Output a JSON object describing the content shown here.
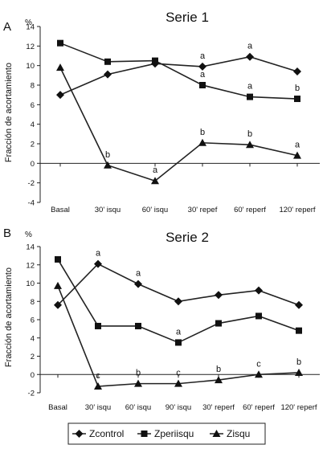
{
  "chart_data": [
    {
      "type": "line",
      "panel_letter": "A",
      "title": "Serie 1",
      "unit_label": "%",
      "ylabel": "Fracción de acortamiento",
      "xlabel": "",
      "ylim": [
        -4,
        14
      ],
      "yticks": [
        "-4",
        "-2",
        "0",
        "2",
        "4",
        "6",
        "8",
        "10",
        "12",
        "14"
      ],
      "categories": [
        "Basal",
        "30' isqu",
        "60' isqu",
        "30' repef",
        "60' reperf",
        "120' reperf"
      ],
      "series": [
        {
          "name": "Zcontrol",
          "marker": "diamond",
          "values": [
            7.0,
            9.1,
            10.2,
            9.9,
            10.9,
            9.4
          ]
        },
        {
          "name": "Zperiisqu",
          "marker": "square",
          "values": [
            12.3,
            10.4,
            10.5,
            8.0,
            6.8,
            6.6
          ]
        },
        {
          "name": "Zisqu",
          "marker": "triangle",
          "values": [
            9.8,
            -0.2,
            -1.8,
            2.1,
            1.9,
            0.8
          ]
        }
      ],
      "annotations": [
        {
          "text": "b",
          "series": 2,
          "index": 1
        },
        {
          "text": "a",
          "series": 2,
          "index": 2
        },
        {
          "text": "a",
          "series": 0,
          "index": 3
        },
        {
          "text": "a",
          "series": 1,
          "index": 3
        },
        {
          "text": "b",
          "series": 2,
          "index": 3
        },
        {
          "text": "a",
          "series": 0,
          "index": 4
        },
        {
          "text": "a",
          "series": 1,
          "index": 4
        },
        {
          "text": "b",
          "series": 2,
          "index": 4
        },
        {
          "text": "b",
          "series": 1,
          "index": 5
        },
        {
          "text": "a",
          "series": 2,
          "index": 5
        }
      ]
    },
    {
      "type": "line",
      "panel_letter": "B",
      "title": "Serie 2",
      "unit_label": "%",
      "ylabel": "Fracción de acortamiento",
      "xlabel": "",
      "ylim": [
        -2,
        14
      ],
      "yticks": [
        "-2",
        "0",
        "2",
        "4",
        "6",
        "8",
        "10",
        "12",
        "14"
      ],
      "categories": [
        "Basal",
        "30' isqu",
        "60' isqu",
        "90' isqu",
        "30' reperf",
        "60' reperf",
        "120' reperf"
      ],
      "series": [
        {
          "name": "Zcontrol",
          "marker": "diamond",
          "values": [
            7.6,
            12.1,
            9.9,
            8.0,
            8.7,
            9.2,
            7.6
          ]
        },
        {
          "name": "Zperiisqu",
          "marker": "square",
          "values": [
            12.6,
            5.3,
            5.3,
            3.5,
            5.6,
            6.4,
            4.8
          ]
        },
        {
          "name": "Zisqu",
          "marker": "triangle",
          "values": [
            9.7,
            -1.3,
            -1.0,
            -1.0,
            -0.6,
            0.0,
            0.2
          ]
        }
      ],
      "annotations": [
        {
          "text": "a",
          "series": 0,
          "index": 1
        },
        {
          "text": "a",
          "series": 0,
          "index": 2
        },
        {
          "text": "a",
          "series": 1,
          "index": 3
        },
        {
          "text": "c",
          "series": 2,
          "index": 1
        },
        {
          "text": "b",
          "series": 2,
          "index": 2
        },
        {
          "text": "c",
          "series": 2,
          "index": 3
        },
        {
          "text": "b",
          "series": 2,
          "index": 4
        },
        {
          "text": "c",
          "series": 2,
          "index": 5
        },
        {
          "text": "b",
          "series": 2,
          "index": 6
        }
      ]
    }
  ],
  "legend": {
    "items": [
      {
        "label": "Zcontrol",
        "marker": "diamond"
      },
      {
        "label": "Zperiisqu",
        "marker": "square"
      },
      {
        "label": "Zisqu",
        "marker": "triangle"
      }
    ]
  }
}
